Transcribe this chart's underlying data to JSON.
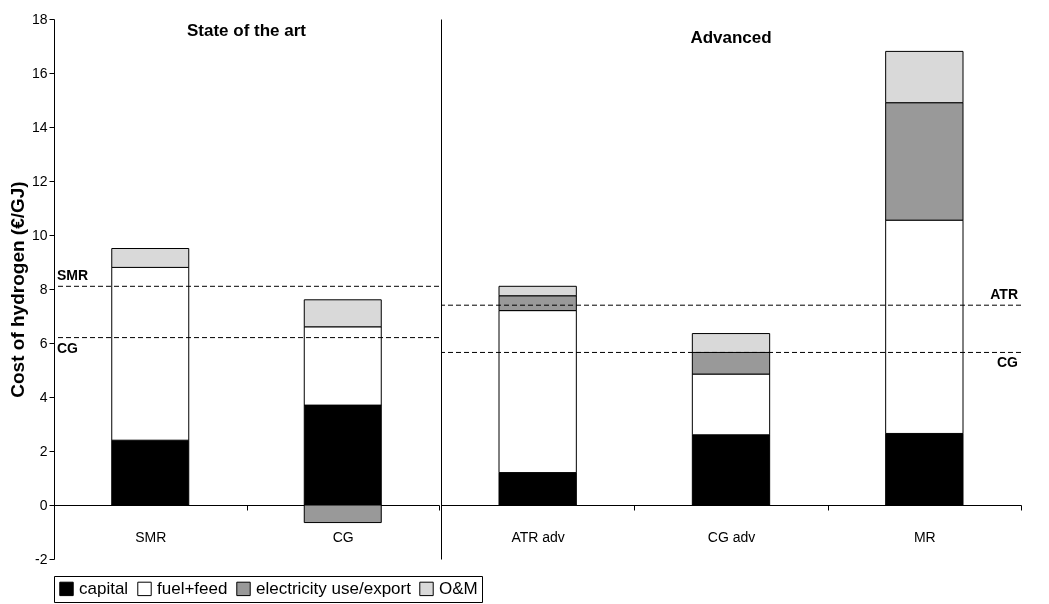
{
  "chart_data": [
    {
      "type": "bar",
      "title": "State of the art",
      "ylabel": "Cost of hydrogen (€/GJ)",
      "categories": [
        "SMR",
        "CG"
      ],
      "stacked": true,
      "series": [
        {
          "name": "capital",
          "color": "#000000",
          "values": [
            2.4,
            3.7
          ]
        },
        {
          "name": "fuel+feed",
          "color": "#ffffff",
          "values": [
            6.4,
            2.9
          ]
        },
        {
          "name": "electricity use/export",
          "color": "#999999",
          "values": [
            null,
            -0.65
          ]
        },
        {
          "name": "O&M",
          "color": "#d9d9d9",
          "values": [
            0.7,
            1.0
          ]
        }
      ],
      "ylim": [
        -2,
        18
      ],
      "yticks": [
        -2,
        0,
        2,
        4,
        6,
        8,
        10,
        12,
        14,
        16,
        18
      ],
      "ref_lines": [
        {
          "axis": "y",
          "value": 8.1,
          "label": "SMR",
          "line_style": "dashed"
        },
        {
          "axis": "y",
          "value": 6.2,
          "label": "CG",
          "line_style": "dashed"
        }
      ],
      "grid": false,
      "legend": "bottom"
    },
    {
      "type": "bar",
      "title": "Advanced",
      "categories": [
        "ATR adv",
        "CG adv",
        "MR"
      ],
      "stacked": true,
      "series": [
        {
          "name": "capital",
          "color": "#000000",
          "values": [
            1.2,
            2.6,
            2.65
          ]
        },
        {
          "name": "fuel+feed",
          "color": "#ffffff",
          "values": [
            6.0,
            2.25,
            7.9
          ]
        },
        {
          "name": "electricity use/export",
          "color": "#999999",
          "values": [
            0.55,
            0.8,
            4.35
          ]
        },
        {
          "name": "O&M",
          "color": "#d9d9d9",
          "values": [
            0.35,
            0.7,
            1.9
          ]
        }
      ],
      "ylim": [
        -2,
        18
      ],
      "yticks": [
        -2,
        0,
        2,
        4,
        6,
        8,
        10,
        12,
        14,
        16,
        18
      ],
      "ref_lines": [
        {
          "axis": "y",
          "value": 7.4,
          "label": "ATR",
          "line_style": "dashed"
        },
        {
          "axis": "y",
          "value": 5.65,
          "label": "CG",
          "line_style": "dashed"
        }
      ],
      "tick_labels": "x",
      "grid": false,
      "legend": "bottom"
    }
  ]
}
